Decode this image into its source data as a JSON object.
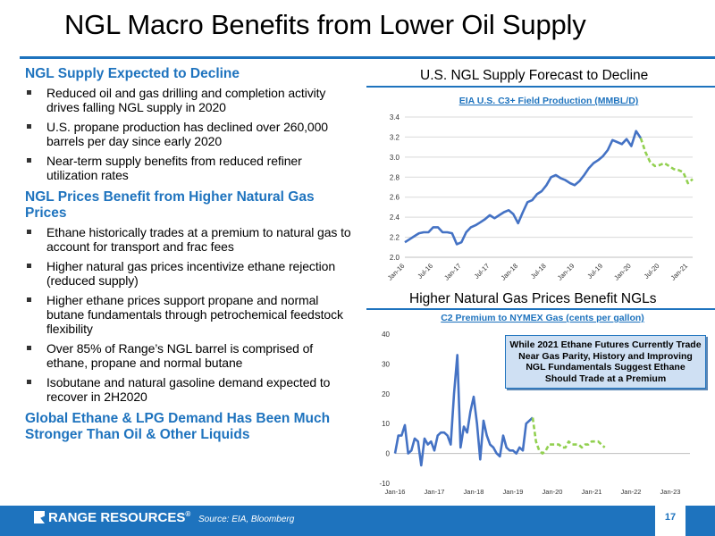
{
  "slide": {
    "title": "NGL Macro Benefits from Lower Oil Supply",
    "page_number": "17",
    "company": "RANGE RESOURCES",
    "registered_mark": "®",
    "source": "Source: EIA, Bloomberg"
  },
  "sections": [
    {
      "heading": "NGL Supply Expected to Decline",
      "bullets": [
        "Reduced oil and gas drilling and completion activity drives falling NGL supply in 2020",
        "U.S. propane production has declined over 260,000 barrels per day since early 2020",
        "Near-term supply benefits from reduced refiner utilization rates"
      ]
    },
    {
      "heading": "NGL Prices Benefit from Higher Natural Gas Prices",
      "bullets": [
        "Ethane historically trades at a premium to natural gas to account for transport and frac fees",
        "Higher natural gas prices incentivize ethane rejection (reduced supply)",
        "Higher ethane prices support propane and normal butane fundamentals through petrochemical feedstock flexibility",
        "Over 85% of Range’s NGL barrel is comprised of ethane, propane and normal butane",
        "Isobutane and natural gasoline demand expected to recover in 2H2020"
      ]
    },
    {
      "heading": "Global Ethane & LPG Demand Has Been Much Stronger Than Oil & Other Liquids",
      "bullets": []
    }
  ],
  "chart_data": [
    {
      "type": "line",
      "panel_title": "U.S. NGL Supply Forecast to Decline",
      "title": "EIA U.S. C3+ Field Production (MMBL/D)",
      "xlabel": "",
      "ylabel": "",
      "ylim": [
        2.0,
        3.4
      ],
      "yticks": [
        "2.0",
        "2.2",
        "2.4",
        "2.6",
        "2.8",
        "3.0",
        "3.2",
        "3.4"
      ],
      "xticks": [
        "Jan-16",
        "Jul-16",
        "Jan-17",
        "Jul-17",
        "Jan-18",
        "Jul-18",
        "Jan-19",
        "Jul-19",
        "Jan-20",
        "Jul-20",
        "Jan-21"
      ],
      "x_start": "Jan-16",
      "grid": true,
      "series": [
        {
          "style": "historical",
          "color": "#4472c4",
          "dashed": false,
          "values": [
            2.15,
            2.18,
            2.21,
            2.24,
            2.25,
            2.25,
            2.3,
            2.3,
            2.25,
            2.25,
            2.24,
            2.13,
            2.15,
            2.25,
            2.3,
            2.32,
            2.35,
            2.38,
            2.42,
            2.39,
            2.42,
            2.45,
            2.47,
            2.43,
            2.34,
            2.45,
            2.55,
            2.57,
            2.63,
            2.66,
            2.72,
            2.8,
            2.82,
            2.79,
            2.77,
            2.74,
            2.72,
            2.76,
            2.82,
            2.89,
            2.94,
            2.97,
            3.01,
            3.07,
            3.17,
            3.15,
            3.13,
            3.18,
            3.11,
            3.26,
            3.19
          ]
        },
        {
          "style": "forecast",
          "color": "#92d050",
          "dashed": true,
          "offset": 50,
          "values": [
            3.19,
            3.05,
            2.95,
            2.91,
            2.92,
            2.94,
            2.91,
            2.88,
            2.87,
            2.85,
            2.74,
            2.78
          ]
        }
      ]
    },
    {
      "type": "line",
      "panel_title": "Higher Natural Gas Prices Benefit NGLs",
      "title": "C2 Premium to NYMEX Gas (cents per gallon)",
      "xlabel": "",
      "ylabel": "",
      "ylim": [
        -10,
        40
      ],
      "yticks": [
        "-10",
        "0",
        "10",
        "20",
        "30",
        "40"
      ],
      "xticks": [
        "Jan-16",
        "Jan-17",
        "Jan-18",
        "Jan-19",
        "Jan-20",
        "Jan-21",
        "Jan-22",
        "Jan-23"
      ],
      "x_start": "Jan-16",
      "grid": false,
      "annotation": "While 2021 Ethane Futures Currently Trade Near Gas Parity, History and Improving NGL Fundamentals Suggest Ethane Should Trade at a Premium",
      "series": [
        {
          "style": "historical",
          "color": "#4472c4",
          "dashed": false,
          "values": [
            0,
            6,
            6,
            9.5,
            0,
            1,
            5,
            4,
            -4,
            5,
            3,
            4,
            1,
            6,
            7,
            7,
            6,
            3,
            20,
            33,
            2,
            9,
            7,
            14,
            19,
            10,
            -2,
            11,
            6,
            3,
            2,
            0,
            -1,
            6,
            2,
            1,
            1,
            0,
            2,
            1,
            10,
            11,
            12
          ]
        },
        {
          "style": "forecast",
          "color": "#92d050",
          "dashed": true,
          "offset": 42,
          "values": [
            12,
            4,
            1,
            0,
            1,
            3,
            3,
            3,
            3,
            2,
            2,
            4,
            3,
            3,
            3,
            2,
            3,
            3,
            4,
            4,
            4,
            3,
            2
          ]
        }
      ]
    }
  ]
}
